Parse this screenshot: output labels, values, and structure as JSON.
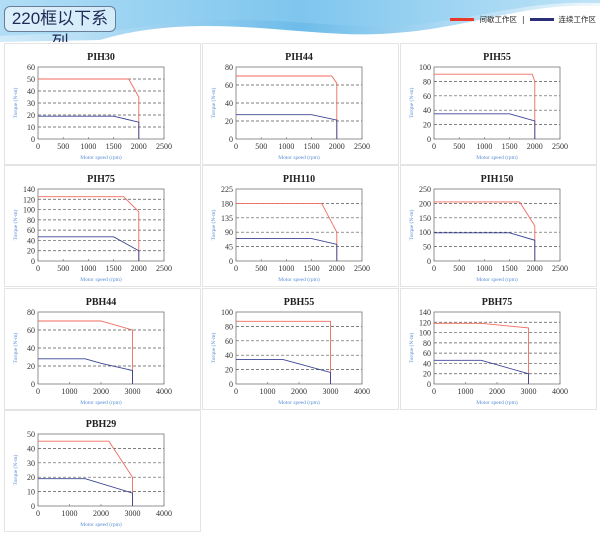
{
  "header": {
    "title": "220框以下系列",
    "legend": [
      {
        "label": "间歇工作区",
        "color": "#e8392b"
      },
      {
        "label": "连续工作区",
        "color": "#2a2f7a"
      }
    ],
    "separator": "|"
  },
  "colors": {
    "intermittent": "#f06a5e",
    "continuous": "#3b4494",
    "axis_label": "#5b8fd6",
    "grid": "#555555"
  },
  "chart_data": [
    {
      "type": "line",
      "title": "PIH30",
      "xlabel": "Motor speed (rpm)",
      "ylabel": "Torque (N-m)",
      "xlim": [
        0,
        2500
      ],
      "xticks": [
        0,
        500,
        1000,
        1500,
        2000,
        2500
      ],
      "ylim": [
        0,
        60
      ],
      "yticks": [
        0,
        10,
        20,
        30,
        40,
        50,
        60
      ],
      "grid": true,
      "series": [
        {
          "values": [
            [
              0,
              50
            ],
            [
              1800,
              50
            ],
            [
              2000,
              35
            ],
            [
              2000,
              0
            ]
          ]
        },
        {
          "values": [
            [
              0,
              19
            ],
            [
              1500,
              19
            ],
            [
              2000,
              14
            ],
            [
              2000,
              0
            ]
          ]
        }
      ]
    },
    {
      "type": "line",
      "title": "PIH44",
      "xlabel": "Motor speed (rpm)",
      "ylabel": "Torque (N-m)",
      "xlim": [
        0,
        2500
      ],
      "xticks": [
        0,
        500,
        1000,
        1500,
        2000,
        2500
      ],
      "ylim": [
        0,
        80
      ],
      "yticks": [
        0,
        20,
        40,
        60,
        80
      ],
      "grid": true,
      "series": [
        {
          "values": [
            [
              0,
              70
            ],
            [
              1900,
              70
            ],
            [
              2000,
              62
            ],
            [
              2000,
              0
            ]
          ]
        },
        {
          "values": [
            [
              0,
              27
            ],
            [
              1500,
              27
            ],
            [
              2000,
              21
            ],
            [
              2000,
              0
            ]
          ]
        }
      ]
    },
    {
      "type": "line",
      "title": "PIH55",
      "xlabel": "Motor speed (rpm)",
      "ylabel": "Torque (N-m)",
      "xlim": [
        0,
        2500
      ],
      "xticks": [
        0,
        500,
        1000,
        1500,
        2000,
        2500
      ],
      "ylim": [
        0,
        100
      ],
      "yticks": [
        0,
        20,
        40,
        60,
        80,
        100
      ],
      "grid": true,
      "series": [
        {
          "values": [
            [
              0,
              90
            ],
            [
              1950,
              90
            ],
            [
              2000,
              80
            ],
            [
              2000,
              0
            ]
          ]
        },
        {
          "values": [
            [
              0,
              35
            ],
            [
              1500,
              35
            ],
            [
              2000,
              25
            ],
            [
              2000,
              0
            ]
          ]
        }
      ]
    },
    {
      "type": "line",
      "title": "PIH75",
      "xlabel": "Motor speed (rpm)",
      "ylabel": "Torque (N-m)",
      "xlim": [
        0,
        2500
      ],
      "xticks": [
        0,
        500,
        1000,
        1500,
        2000,
        2500
      ],
      "ylim": [
        0,
        140
      ],
      "yticks": [
        0,
        20,
        40,
        60,
        80,
        100,
        120,
        140
      ],
      "grid": true,
      "series": [
        {
          "values": [
            [
              0,
              125
            ],
            [
              1700,
              125
            ],
            [
              2000,
              96
            ],
            [
              2000,
              0
            ]
          ]
        },
        {
          "values": [
            [
              0,
              47
            ],
            [
              1500,
              47
            ],
            [
              2000,
              20
            ],
            [
              2000,
              0
            ]
          ]
        }
      ]
    },
    {
      "type": "line",
      "title": "PIH110",
      "xlabel": "Motor speed (rpm)",
      "ylabel": "Torque (N-m)",
      "xlim": [
        0,
        2500
      ],
      "xticks": [
        0,
        500,
        1000,
        1500,
        2000,
        2500
      ],
      "ylim": [
        0,
        225
      ],
      "yticks": [
        0,
        45,
        90,
        135,
        180,
        225
      ],
      "grid": true,
      "series": [
        {
          "values": [
            [
              0,
              180
            ],
            [
              1700,
              180
            ],
            [
              2000,
              90
            ],
            [
              2000,
              0
            ]
          ]
        },
        {
          "values": [
            [
              0,
              70
            ],
            [
              1500,
              70
            ],
            [
              2000,
              52
            ],
            [
              2000,
              0
            ]
          ]
        }
      ]
    },
    {
      "type": "line",
      "title": "PIH150",
      "xlabel": "Motor speed (rpm)",
      "ylabel": "Torque (N-m)",
      "xlim": [
        0,
        2500
      ],
      "xticks": [
        0,
        500,
        1000,
        1500,
        2000,
        2500
      ],
      "ylim": [
        0,
        250
      ],
      "yticks": [
        0,
        50,
        100,
        150,
        200,
        250
      ],
      "grid": true,
      "series": [
        {
          "values": [
            [
              0,
              205
            ],
            [
              1700,
              205
            ],
            [
              2000,
              122
            ],
            [
              2000,
              0
            ]
          ]
        },
        {
          "values": [
            [
              0,
              98
            ],
            [
              1500,
              98
            ],
            [
              2000,
              72
            ],
            [
              2000,
              0
            ]
          ]
        }
      ]
    },
    {
      "type": "line",
      "title": "PBH44",
      "xlabel": "Motor speed (rpm)",
      "ylabel": "Torque (N-m)",
      "xlim": [
        0,
        4000
      ],
      "xticks": [
        0,
        1000,
        2000,
        3000,
        4000
      ],
      "ylim": [
        0,
        80
      ],
      "yticks": [
        0,
        20,
        40,
        60,
        80
      ],
      "grid": true,
      "series": [
        {
          "values": [
            [
              0,
              70
            ],
            [
              2000,
              70
            ],
            [
              3000,
              60
            ],
            [
              3000,
              0
            ]
          ]
        },
        {
          "values": [
            [
              0,
              28
            ],
            [
              1500,
              28
            ],
            [
              2000,
              23
            ],
            [
              3000,
              15
            ],
            [
              3000,
              0
            ]
          ]
        }
      ]
    },
    {
      "type": "line",
      "title": "PBH55",
      "xlabel": "Motor speed (rpm)",
      "ylabel": "Torque (N-m)",
      "xlim": [
        0,
        4000
      ],
      "xticks": [
        0,
        1000,
        2000,
        3000,
        4000
      ],
      "ylim": [
        0,
        100
      ],
      "yticks": [
        0,
        20,
        40,
        60,
        80,
        100
      ],
      "grid": true,
      "series": [
        {
          "values": [
            [
              0,
              87
            ],
            [
              3000,
              87
            ],
            [
              3000,
              0
            ]
          ]
        },
        {
          "values": [
            [
              0,
              34
            ],
            [
              1500,
              34
            ],
            [
              3000,
              16
            ],
            [
              3000,
              0
            ]
          ]
        }
      ]
    },
    {
      "type": "line",
      "title": "PBH75",
      "xlabel": "Motor speed (rpm)",
      "ylabel": "Torque (N-m)",
      "xlim": [
        0,
        4000
      ],
      "xticks": [
        0,
        1000,
        2000,
        3000,
        4000
      ],
      "ylim": [
        0,
        140
      ],
      "yticks": [
        0,
        20,
        40,
        60,
        80,
        100,
        120,
        140
      ],
      "grid": true,
      "series": [
        {
          "values": [
            [
              0,
              118
            ],
            [
              1500,
              118
            ],
            [
              3000,
              109
            ],
            [
              3000,
              0
            ]
          ]
        },
        {
          "values": [
            [
              0,
              46
            ],
            [
              1500,
              46
            ],
            [
              3000,
              20
            ],
            [
              3000,
              0
            ]
          ]
        }
      ]
    },
    {
      "type": "line",
      "title": "PBH29",
      "xlabel": "Motor speed (rpm)",
      "ylabel": "Torque (N-m)",
      "xlim": [
        0,
        4000
      ],
      "xticks": [
        0,
        1000,
        2000,
        3000,
        4000
      ],
      "ylim": [
        0,
        50
      ],
      "yticks": [
        0,
        10,
        20,
        30,
        40,
        50
      ],
      "grid": true,
      "series": [
        {
          "values": [
            [
              0,
              45
            ],
            [
              2250,
              45
            ],
            [
              3000,
              20
            ],
            [
              3000,
              0
            ]
          ]
        },
        {
          "values": [
            [
              0,
              19
            ],
            [
              1500,
              19
            ],
            [
              3000,
              9
            ],
            [
              3000,
              0
            ]
          ]
        }
      ]
    }
  ]
}
